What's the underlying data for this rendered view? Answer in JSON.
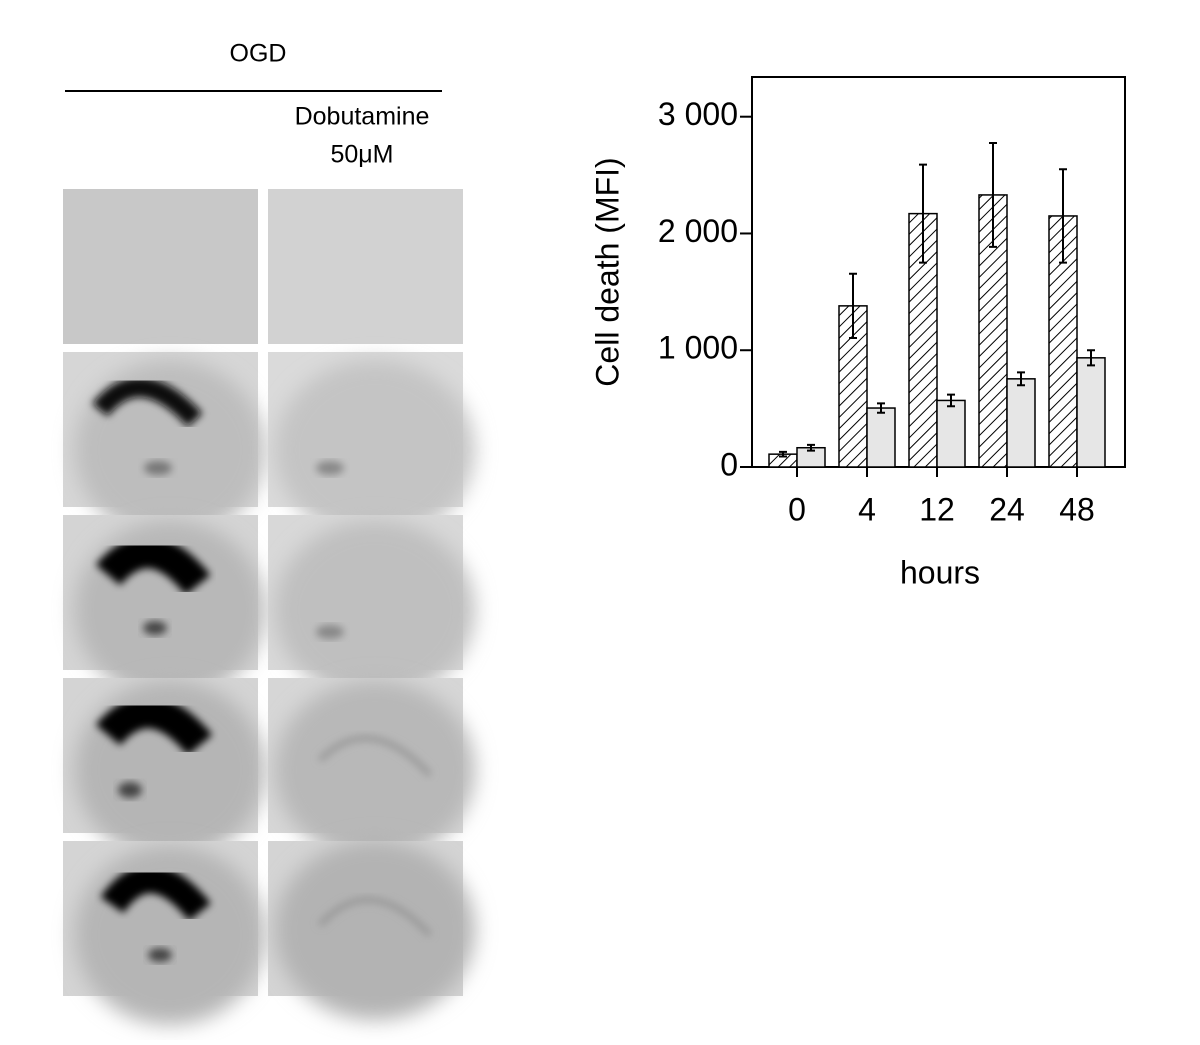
{
  "panel": {
    "header": "OGD",
    "treatment": [
      "Dobutamine",
      "50μM"
    ]
  },
  "chart_data": {
    "type": "bar",
    "ylabel": "Cell death (MFI)",
    "xlabel": "hours",
    "categories": [
      "0",
      "4",
      "12",
      "24",
      "48"
    ],
    "series": [
      {
        "color": "#ffffff",
        "hatch": true,
        "values": [
          110,
          1380,
          2170,
          2330,
          2150
        ],
        "errors": [
          20,
          275,
          420,
          445,
          400
        ]
      },
      {
        "color": "#e6e6e6",
        "hatch": false,
        "values": [
          165,
          505,
          570,
          755,
          935
        ],
        "errors": [
          25,
          40,
          50,
          55,
          65
        ]
      }
    ],
    "ylim": [
      0,
      3340
    ],
    "yticks": [
      0,
      {
        "value": 1000,
        "label": "1 000"
      },
      {
        "value": 2000,
        "label": "2 000"
      },
      {
        "value": 3000,
        "label": "3 000"
      }
    ]
  }
}
